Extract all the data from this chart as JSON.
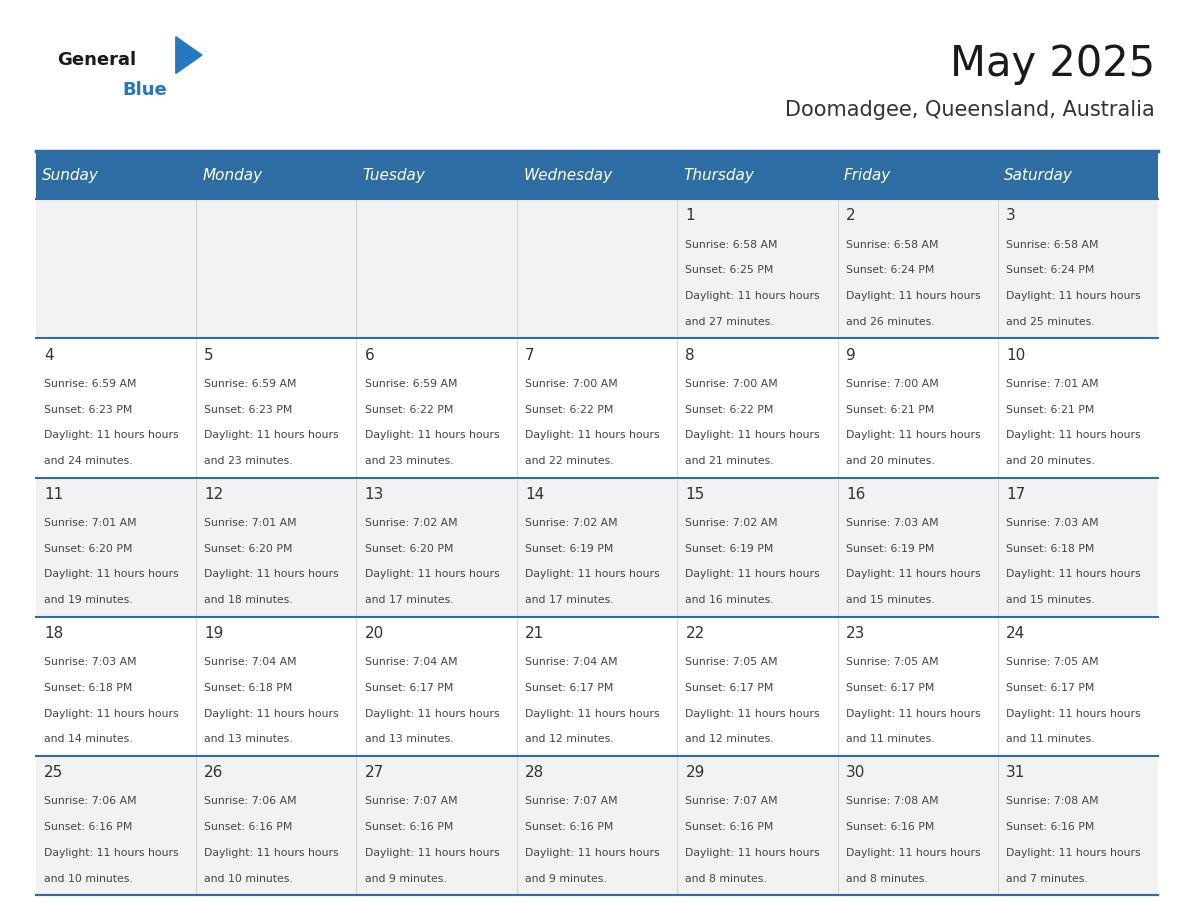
{
  "title": "May 2025",
  "subtitle": "Doomadgee, Queensland, Australia",
  "days_of_week": [
    "Sunday",
    "Monday",
    "Tuesday",
    "Wednesday",
    "Thursday",
    "Friday",
    "Saturday"
  ],
  "header_bg": "#2E6DA4",
  "header_text": "#FFFFFF",
  "cell_bg_even": "#F2F2F2",
  "cell_bg_odd": "#FFFFFF",
  "cell_text": "#333333",
  "day_number_color": "#333333",
  "border_color": "#2E6DA4",
  "week_separator_color": "#2E6DA4",
  "logo_general_color": "#1a1a1a",
  "logo_blue_color": "#2479C0",
  "weeks": [
    {
      "days": [
        {
          "date": null,
          "sunrise": null,
          "sunset": null,
          "daylight": null
        },
        {
          "date": null,
          "sunrise": null,
          "sunset": null,
          "daylight": null
        },
        {
          "date": null,
          "sunrise": null,
          "sunset": null,
          "daylight": null
        },
        {
          "date": null,
          "sunrise": null,
          "sunset": null,
          "daylight": null
        },
        {
          "date": 1,
          "sunrise": "6:58 AM",
          "sunset": "6:25 PM",
          "daylight": "11 hours and 27 minutes"
        },
        {
          "date": 2,
          "sunrise": "6:58 AM",
          "sunset": "6:24 PM",
          "daylight": "11 hours and 26 minutes"
        },
        {
          "date": 3,
          "sunrise": "6:58 AM",
          "sunset": "6:24 PM",
          "daylight": "11 hours and 25 minutes"
        }
      ]
    },
    {
      "days": [
        {
          "date": 4,
          "sunrise": "6:59 AM",
          "sunset": "6:23 PM",
          "daylight": "11 hours and 24 minutes"
        },
        {
          "date": 5,
          "sunrise": "6:59 AM",
          "sunset": "6:23 PM",
          "daylight": "11 hours and 23 minutes"
        },
        {
          "date": 6,
          "sunrise": "6:59 AM",
          "sunset": "6:22 PM",
          "daylight": "11 hours and 23 minutes"
        },
        {
          "date": 7,
          "sunrise": "7:00 AM",
          "sunset": "6:22 PM",
          "daylight": "11 hours and 22 minutes"
        },
        {
          "date": 8,
          "sunrise": "7:00 AM",
          "sunset": "6:22 PM",
          "daylight": "11 hours and 21 minutes"
        },
        {
          "date": 9,
          "sunrise": "7:00 AM",
          "sunset": "6:21 PM",
          "daylight": "11 hours and 20 minutes"
        },
        {
          "date": 10,
          "sunrise": "7:01 AM",
          "sunset": "6:21 PM",
          "daylight": "11 hours and 20 minutes"
        }
      ]
    },
    {
      "days": [
        {
          "date": 11,
          "sunrise": "7:01 AM",
          "sunset": "6:20 PM",
          "daylight": "11 hours and 19 minutes"
        },
        {
          "date": 12,
          "sunrise": "7:01 AM",
          "sunset": "6:20 PM",
          "daylight": "11 hours and 18 minutes"
        },
        {
          "date": 13,
          "sunrise": "7:02 AM",
          "sunset": "6:20 PM",
          "daylight": "11 hours and 17 minutes"
        },
        {
          "date": 14,
          "sunrise": "7:02 AM",
          "sunset": "6:19 PM",
          "daylight": "11 hours and 17 minutes"
        },
        {
          "date": 15,
          "sunrise": "7:02 AM",
          "sunset": "6:19 PM",
          "daylight": "11 hours and 16 minutes"
        },
        {
          "date": 16,
          "sunrise": "7:03 AM",
          "sunset": "6:19 PM",
          "daylight": "11 hours and 15 minutes"
        },
        {
          "date": 17,
          "sunrise": "7:03 AM",
          "sunset": "6:18 PM",
          "daylight": "11 hours and 15 minutes"
        }
      ]
    },
    {
      "days": [
        {
          "date": 18,
          "sunrise": "7:03 AM",
          "sunset": "6:18 PM",
          "daylight": "11 hours and 14 minutes"
        },
        {
          "date": 19,
          "sunrise": "7:04 AM",
          "sunset": "6:18 PM",
          "daylight": "11 hours and 13 minutes"
        },
        {
          "date": 20,
          "sunrise": "7:04 AM",
          "sunset": "6:17 PM",
          "daylight": "11 hours and 13 minutes"
        },
        {
          "date": 21,
          "sunrise": "7:04 AM",
          "sunset": "6:17 PM",
          "daylight": "11 hours and 12 minutes"
        },
        {
          "date": 22,
          "sunrise": "7:05 AM",
          "sunset": "6:17 PM",
          "daylight": "11 hours and 12 minutes"
        },
        {
          "date": 23,
          "sunrise": "7:05 AM",
          "sunset": "6:17 PM",
          "daylight": "11 hours and 11 minutes"
        },
        {
          "date": 24,
          "sunrise": "7:05 AM",
          "sunset": "6:17 PM",
          "daylight": "11 hours and 11 minutes"
        }
      ]
    },
    {
      "days": [
        {
          "date": 25,
          "sunrise": "7:06 AM",
          "sunset": "6:16 PM",
          "daylight": "11 hours and 10 minutes"
        },
        {
          "date": 26,
          "sunrise": "7:06 AM",
          "sunset": "6:16 PM",
          "daylight": "11 hours and 10 minutes"
        },
        {
          "date": 27,
          "sunrise": "7:07 AM",
          "sunset": "6:16 PM",
          "daylight": "11 hours and 9 minutes"
        },
        {
          "date": 28,
          "sunrise": "7:07 AM",
          "sunset": "6:16 PM",
          "daylight": "11 hours and 9 minutes"
        },
        {
          "date": 29,
          "sunrise": "7:07 AM",
          "sunset": "6:16 PM",
          "daylight": "11 hours and 8 minutes"
        },
        {
          "date": 30,
          "sunrise": "7:08 AM",
          "sunset": "6:16 PM",
          "daylight": "11 hours and 8 minutes"
        },
        {
          "date": 31,
          "sunrise": "7:08 AM",
          "sunset": "6:16 PM",
          "daylight": "11 hours and 7 minutes"
        }
      ]
    }
  ]
}
